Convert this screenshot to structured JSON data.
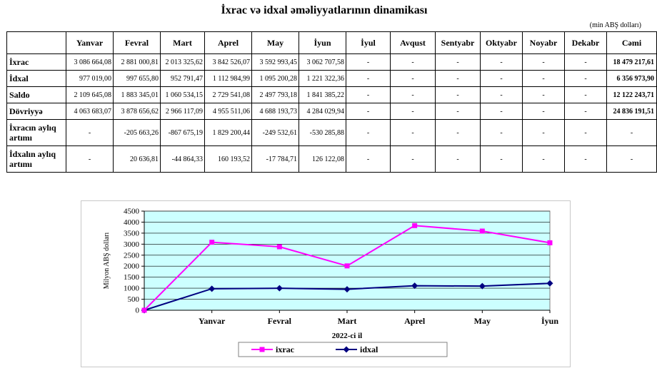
{
  "title": "İxrac və idxal əməliyyatlarının dinamikası",
  "unit": "(min ABŞ dolları)",
  "table": {
    "columns": [
      "Yanvar",
      "Fevral",
      "Mart",
      "Aprel",
      "May",
      "İyun",
      "İyul",
      "Avqust",
      "Sentyabr",
      "Oktyabr",
      "Noyabr",
      "Dekabr",
      "Cəmi"
    ],
    "rows": [
      {
        "label": "İxrac",
        "cells": [
          "3 086 664,08",
          "2 881 000,81",
          "2 013 325,62",
          "3 842 526,07",
          "3 592 993,45",
          "3 062 707,58",
          "-",
          "-",
          "-",
          "-",
          "-",
          "-",
          "18 479 217,61"
        ]
      },
      {
        "label": "İdxal",
        "cells": [
          "977 019,00",
          "997 655,80",
          "952 791,47",
          "1 112 984,99",
          "1 095 200,28",
          "1 221 322,36",
          "-",
          "-",
          "-",
          "-",
          "-",
          "-",
          "6 356 973,90"
        ]
      },
      {
        "label": "Saldo",
        "cells": [
          "2 109 645,08",
          "1 883 345,01",
          "1 060 534,15",
          "2 729 541,08",
          "2 497 793,18",
          "1 841 385,22",
          "-",
          "-",
          "-",
          "-",
          "-",
          "-",
          "12 122 243,71"
        ]
      },
      {
        "label": "Dövriyyə",
        "cells": [
          "4 063 683,07",
          "3 878 656,62",
          "2 966 117,09",
          "4 955 511,06",
          "4 688 193,73",
          "4 284 029,94",
          "-",
          "-",
          "-",
          "-",
          "-",
          "-",
          "24 836 191,51"
        ]
      },
      {
        "label": "İxracın aylıq artımı",
        "cells": [
          "-",
          "-205 663,26",
          "-867 675,19",
          "1 829 200,44",
          "-249 532,61",
          "-530 285,88",
          "-",
          "-",
          "-",
          "-",
          "-",
          "-",
          "-"
        ]
      },
      {
        "label": "İdxalın aylıq artımı",
        "cells": [
          "-",
          "20 636,81",
          "-44 864,33",
          "160 193,52",
          "-17 784,71",
          "126 122,08",
          "-",
          "-",
          "-",
          "-",
          "-",
          "-",
          "-"
        ]
      }
    ]
  },
  "chart_data": {
    "type": "line",
    "categories": [
      "",
      "Yanvar",
      "Fevral",
      "Mart",
      "Aprel",
      "May",
      "İyun"
    ],
    "series": [
      {
        "name": "ixrac",
        "color": "#ff00ff",
        "values": [
          0,
          3086.66,
          2881.0,
          2013.33,
          3842.53,
          3592.99,
          3062.71
        ]
      },
      {
        "name": "idxal",
        "color": "#000080",
        "values": [
          0,
          977.02,
          997.66,
          952.79,
          1112.98,
          1095.2,
          1221.32
        ]
      }
    ],
    "xlabel": "2022-ci il",
    "ylabel": "Milyon ABŞ dolları",
    "ylim": [
      0,
      4500
    ],
    "yticks": [
      0,
      500,
      1000,
      1500,
      2000,
      2500,
      3000,
      3500,
      4000,
      4500
    ],
    "plot_background": "#ccffff",
    "grid": true,
    "legend_position": "bottom"
  }
}
